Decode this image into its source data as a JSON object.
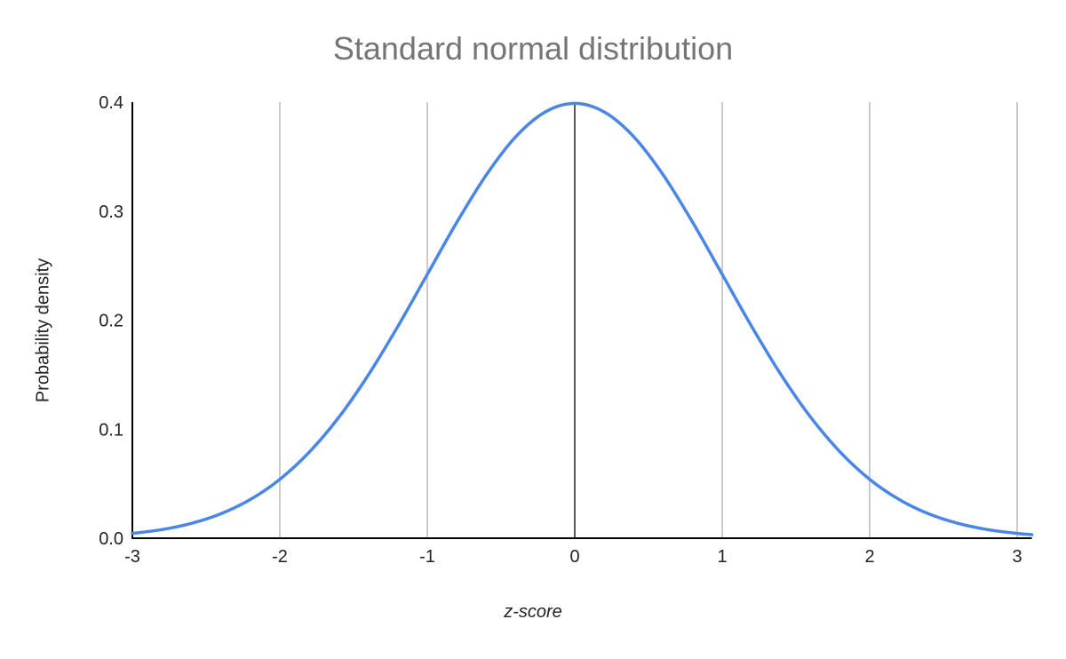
{
  "chart_data": {
    "type": "line",
    "title": "Standard normal distribution",
    "xlabel": "z-score",
    "ylabel": "Probability density",
    "xlim": [
      -3,
      3.1
    ],
    "ylim": [
      0,
      0.4
    ],
    "x_ticks": [
      "-3",
      "-2",
      "-1",
      "0",
      "1",
      "2",
      "3"
    ],
    "y_ticks": [
      "0.0",
      "0.1",
      "0.2",
      "0.3",
      "0.4"
    ],
    "grid": {
      "vertical": true,
      "horizontal": false
    },
    "legend": null,
    "series": [
      {
        "name": "Probability density",
        "color": "#4a86e8",
        "x": [
          -3.0,
          -2.8,
          -2.6,
          -2.4,
          -2.2,
          -2.0,
          -1.8,
          -1.6,
          -1.4,
          -1.2,
          -1.0,
          -0.8,
          -0.6,
          -0.4,
          -0.2,
          0.0,
          0.2,
          0.4,
          0.6,
          0.8,
          1.0,
          1.2,
          1.4,
          1.6,
          1.8,
          2.0,
          2.2,
          2.4,
          2.6,
          2.8,
          3.0,
          3.1
        ],
        "values": [
          0.0044,
          0.0079,
          0.0136,
          0.0224,
          0.0355,
          0.054,
          0.079,
          0.1109,
          0.1497,
          0.1942,
          0.242,
          0.2897,
          0.3332,
          0.3683,
          0.391,
          0.3989,
          0.391,
          0.3683,
          0.3332,
          0.2897,
          0.242,
          0.1942,
          0.1497,
          0.1109,
          0.079,
          0.054,
          0.0355,
          0.0224,
          0.0136,
          0.0079,
          0.0044,
          0.0033
        ]
      }
    ]
  }
}
